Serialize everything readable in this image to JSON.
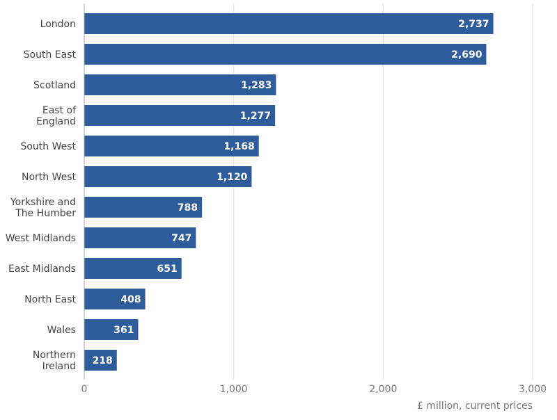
{
  "chart_data": {
    "type": "bar",
    "orientation": "horizontal",
    "categories": [
      "London",
      "South East",
      "Scotland",
      "East of England",
      "South West",
      "North West",
      "Yorkshire and The Humber",
      "West Midlands",
      "East Midlands",
      "North East",
      "Wales",
      "Northern Ireland"
    ],
    "category_lines": [
      [
        "London"
      ],
      [
        "South East"
      ],
      [
        "Scotland"
      ],
      [
        "East of",
        "England"
      ],
      [
        "South West"
      ],
      [
        "North West"
      ],
      [
        "Yorkshire and",
        "The Humber"
      ],
      [
        "West Midlands"
      ],
      [
        "East Midlands"
      ],
      [
        "North East"
      ],
      [
        "Wales"
      ],
      [
        "Northern",
        "Ireland"
      ]
    ],
    "values": [
      2737,
      2690,
      1283,
      1277,
      1168,
      1120,
      788,
      747,
      651,
      408,
      361,
      218
    ],
    "data_labels": [
      "2,737",
      "2,690",
      "1,283",
      "1,277",
      "1,168",
      "1,120",
      "788",
      "747",
      "651",
      "408",
      "361",
      "218"
    ],
    "xlim": [
      0,
      3000
    ],
    "x_ticks": [
      0,
      1000,
      2000,
      3000
    ],
    "x_tick_labels": [
      "0",
      "1,000",
      "2,000",
      "3,000"
    ],
    "xlabel": "£ million, current prices",
    "grid": true,
    "colors": {
      "bar": "#2f5d9b",
      "grid": "#dcdcdc",
      "text": "#444444",
      "axis_text": "#777777"
    }
  }
}
